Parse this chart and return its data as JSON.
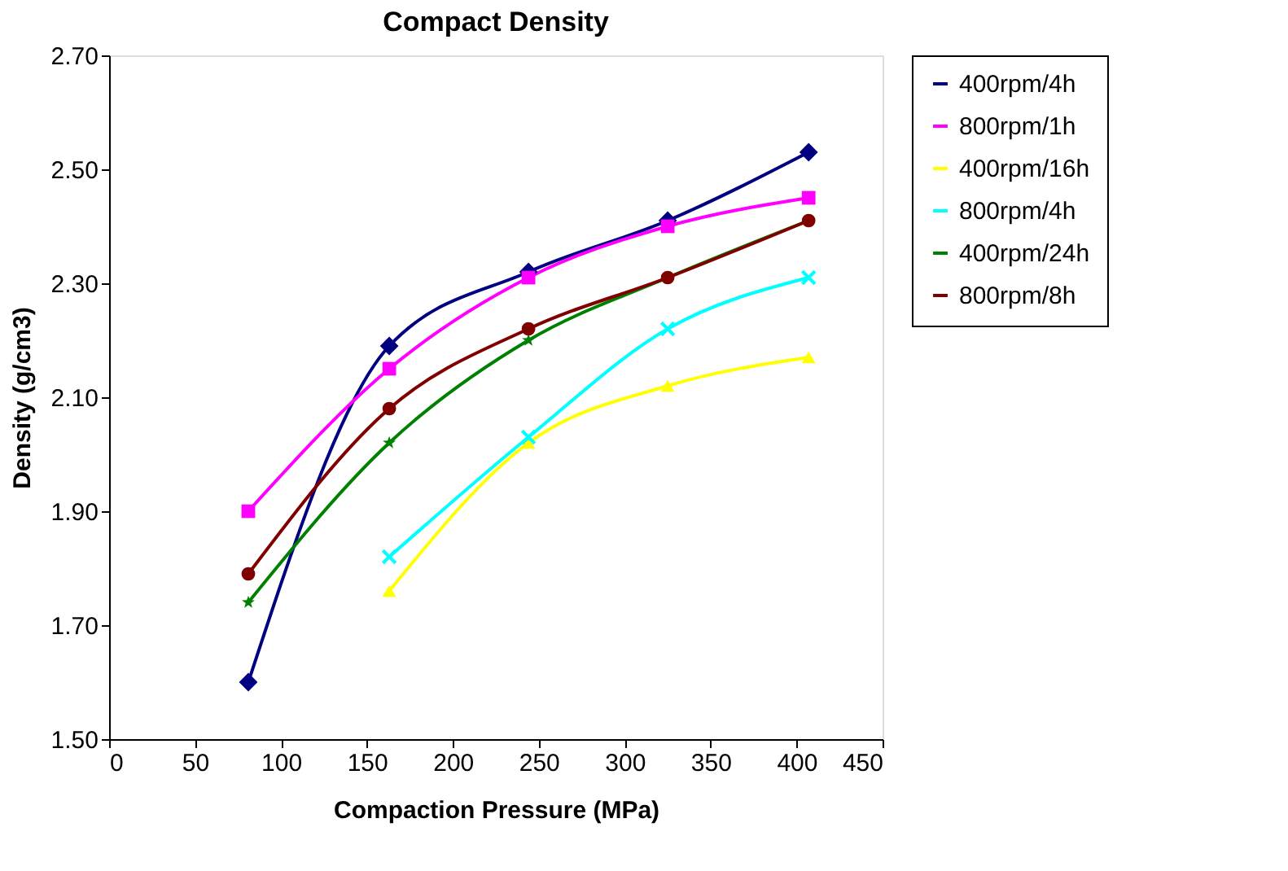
{
  "chart_data": {
    "type": "line",
    "title": "Compact Density",
    "xlabel": "Compaction Pressure (MPa)",
    "ylabel": "Density (g/cm3)",
    "xlim": [
      0,
      450
    ],
    "xticks": [
      0,
      50,
      100,
      150,
      200,
      250,
      300,
      350,
      400,
      450
    ],
    "ylim": [
      1.5,
      2.7
    ],
    "yticks": [
      {
        "value": 1.5,
        "label": "1.50"
      },
      {
        "value": 1.7,
        "label": "1.70"
      },
      {
        "value": 1.9,
        "label": "1.90"
      },
      {
        "value": 2.1,
        "label": "2.10"
      },
      {
        "value": 2.3,
        "label": "2.30"
      },
      {
        "value": 2.5,
        "label": "2.50"
      },
      {
        "value": 2.7,
        "label": "2.70"
      }
    ],
    "grid": false,
    "legend": "right",
    "series": [
      {
        "name": "400rpm/4h",
        "color": "#000080",
        "marker": "diamond",
        "x": [
          81,
          163,
          244,
          325,
          407
        ],
        "values": [
          1.6,
          2.19,
          2.32,
          2.41,
          2.53
        ]
      },
      {
        "name": "800rpm/1h",
        "color": "#ff00ff",
        "marker": "square",
        "x": [
          81,
          163,
          244,
          325,
          407
        ],
        "values": [
          1.9,
          2.15,
          2.31,
          2.4,
          2.45
        ]
      },
      {
        "name": "400rpm/16h",
        "color": "#ffff00",
        "marker": "triangle",
        "x": [
          163,
          244,
          325,
          407
        ],
        "values": [
          1.76,
          2.02,
          2.12,
          2.17
        ]
      },
      {
        "name": "800rpm/4h",
        "color": "#00ffff",
        "marker": "cross",
        "x": [
          163,
          244,
          325,
          407
        ],
        "values": [
          1.82,
          2.03,
          2.22,
          2.31
        ]
      },
      {
        "name": "400rpm/24h",
        "color": "#008000",
        "marker": "star",
        "x": [
          81,
          163,
          244,
          325,
          407
        ],
        "values": [
          1.74,
          2.02,
          2.2,
          2.31,
          2.41
        ]
      },
      {
        "name": "800rpm/8h",
        "color": "#800000",
        "marker": "circle",
        "x": [
          81,
          163,
          244,
          325,
          407
        ],
        "values": [
          1.79,
          2.08,
          2.22,
          2.31,
          2.41
        ]
      }
    ]
  }
}
